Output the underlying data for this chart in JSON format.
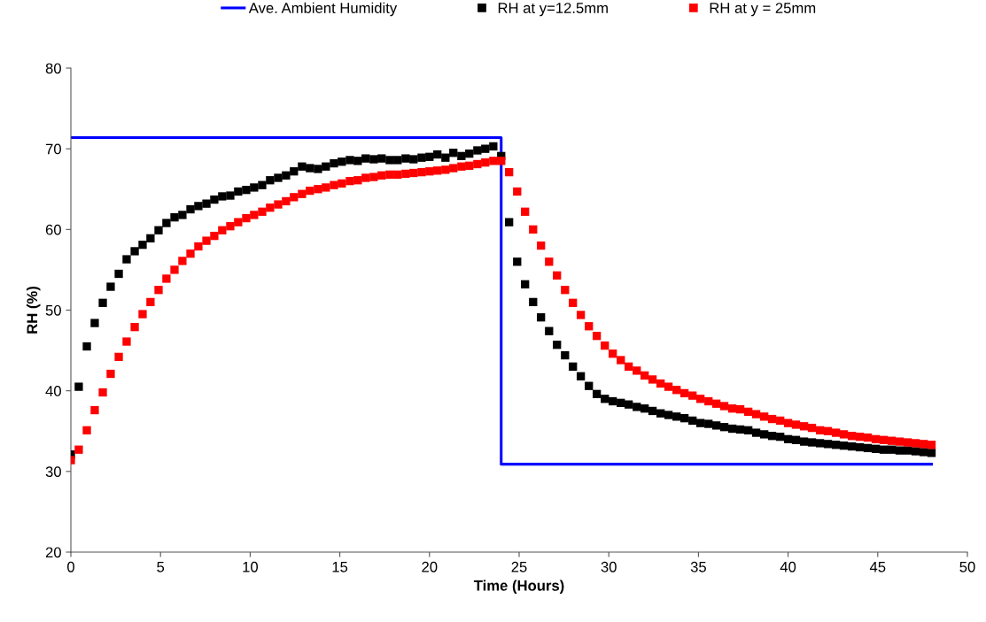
{
  "chart_data": {
    "type": "scatter",
    "xlabel": "Time (Hours)",
    "ylabel": "RH (%)",
    "x": [
      0,
      0.44,
      0.89,
      1.33,
      1.78,
      2.22,
      2.67,
      3.11,
      3.56,
      4,
      4.44,
      4.89,
      5.33,
      5.78,
      6.22,
      6.67,
      7.11,
      7.56,
      8,
      8.44,
      8.89,
      9.33,
      9.78,
      10.22,
      10.67,
      11.11,
      11.56,
      12,
      12.44,
      12.89,
      13.33,
      13.78,
      14.22,
      14.67,
      15.11,
      15.56,
      16,
      16.44,
      16.89,
      17.33,
      17.78,
      18.22,
      18.67,
      19.11,
      19.56,
      20,
      20.44,
      20.89,
      21.33,
      21.78,
      22.22,
      22.67,
      23.11,
      23.56,
      24,
      24.44,
      24.89,
      25.33,
      25.78,
      26.22,
      26.67,
      27.11,
      27.56,
      28,
      28.44,
      28.89,
      29.33,
      29.78,
      30.22,
      30.67,
      31.11,
      31.56,
      32,
      32.44,
      32.89,
      33.33,
      33.78,
      34.22,
      34.67,
      35.11,
      35.56,
      36,
      36.44,
      36.89,
      37.33,
      37.78,
      38.22,
      38.67,
      39.11,
      39.56,
      40,
      40.44,
      40.89,
      41.33,
      41.78,
      42.22,
      42.67,
      43.11,
      43.56,
      44,
      44.44,
      44.89,
      45.33,
      45.78,
      46.22,
      46.67,
      47.11,
      47.56,
      48
    ],
    "series": [
      {
        "name": "Ave. Ambient Humidity",
        "type": "line",
        "color": "#0000ff",
        "marker": "none",
        "x": [
          0,
          24,
          24,
          48
        ],
        "values": [
          71.4,
          71.4,
          30.9,
          30.9
        ]
      },
      {
        "name": "RH at y=12.5mm",
        "color": "#000000",
        "marker": "square",
        "values": [
          32.1,
          40.5,
          45.5,
          48.4,
          50.9,
          52.9,
          54.5,
          56.3,
          57.3,
          58.1,
          58.9,
          59.9,
          60.8,
          61.5,
          61.8,
          62.5,
          62.9,
          63.2,
          63.7,
          64.1,
          64.2,
          64.7,
          64.9,
          65.2,
          65.5,
          66.1,
          66.4,
          66.7,
          67.2,
          67.8,
          67.6,
          67.5,
          67.8,
          68.2,
          68.4,
          68.6,
          68.5,
          68.8,
          68.7,
          68.8,
          68.6,
          68.6,
          68.8,
          68.7,
          68.9,
          69.0,
          69.3,
          68.9,
          69.5,
          69.1,
          69.4,
          69.8,
          70.0,
          70.3,
          69.1,
          60.9,
          56.0,
          53.2,
          51.0,
          49.1,
          47.4,
          45.7,
          44.4,
          43.0,
          41.8,
          40.6,
          39.6,
          39.0,
          38.7,
          38.5,
          38.3,
          38.0,
          37.8,
          37.5,
          37.2,
          37.0,
          36.8,
          36.6,
          36.3,
          36.0,
          35.9,
          35.7,
          35.5,
          35.3,
          35.2,
          35.1,
          34.8,
          34.6,
          34.4,
          34.3,
          34.0,
          33.9,
          33.7,
          33.6,
          33.5,
          33.4,
          33.3,
          33.2,
          33.1,
          33.0,
          32.9,
          32.8,
          32.7,
          32.7,
          32.6,
          32.6,
          32.5,
          32.4,
          32.3
        ]
      },
      {
        "name": "RH at y = 25mm",
        "color": "#ff0000",
        "marker": "square",
        "values": [
          31.4,
          32.7,
          35.1,
          37.6,
          39.8,
          42.1,
          44.2,
          46.1,
          47.9,
          49.5,
          51.0,
          52.5,
          53.9,
          55.0,
          56.1,
          57.0,
          57.9,
          58.6,
          59.2,
          59.9,
          60.4,
          60.9,
          61.4,
          61.8,
          62.2,
          62.7,
          63.1,
          63.5,
          64.0,
          64.4,
          64.8,
          65.0,
          65.2,
          65.5,
          65.7,
          66.0,
          66.1,
          66.4,
          66.5,
          66.7,
          66.8,
          66.8,
          66.9,
          67.0,
          67.1,
          67.2,
          67.3,
          67.4,
          67.6,
          67.8,
          67.9,
          68.1,
          68.3,
          68.5,
          68.5,
          67.1,
          64.7,
          62.2,
          60.0,
          58.0,
          56.0,
          54.3,
          52.5,
          50.9,
          49.4,
          48.0,
          46.8,
          45.6,
          44.6,
          43.8,
          43.0,
          42.5,
          41.9,
          41.4,
          40.9,
          40.5,
          40.1,
          39.7,
          39.4,
          39.0,
          38.7,
          38.4,
          38.1,
          37.8,
          37.7,
          37.4,
          37.1,
          36.8,
          36.5,
          36.3,
          36.0,
          35.8,
          35.6,
          35.4,
          35.1,
          35.0,
          34.8,
          34.6,
          34.4,
          34.3,
          34.2,
          34.0,
          33.9,
          33.8,
          33.7,
          33.6,
          33.5,
          33.4,
          33.3
        ]
      }
    ],
    "xlim": [
      0,
      50
    ],
    "xticks": [
      0,
      5,
      10,
      15,
      20,
      25,
      30,
      35,
      40,
      45,
      50
    ],
    "ylim": [
      20,
      80
    ],
    "yticks": [
      20,
      30,
      40,
      50,
      60,
      70,
      80
    ],
    "grid": false,
    "legend": "top"
  }
}
